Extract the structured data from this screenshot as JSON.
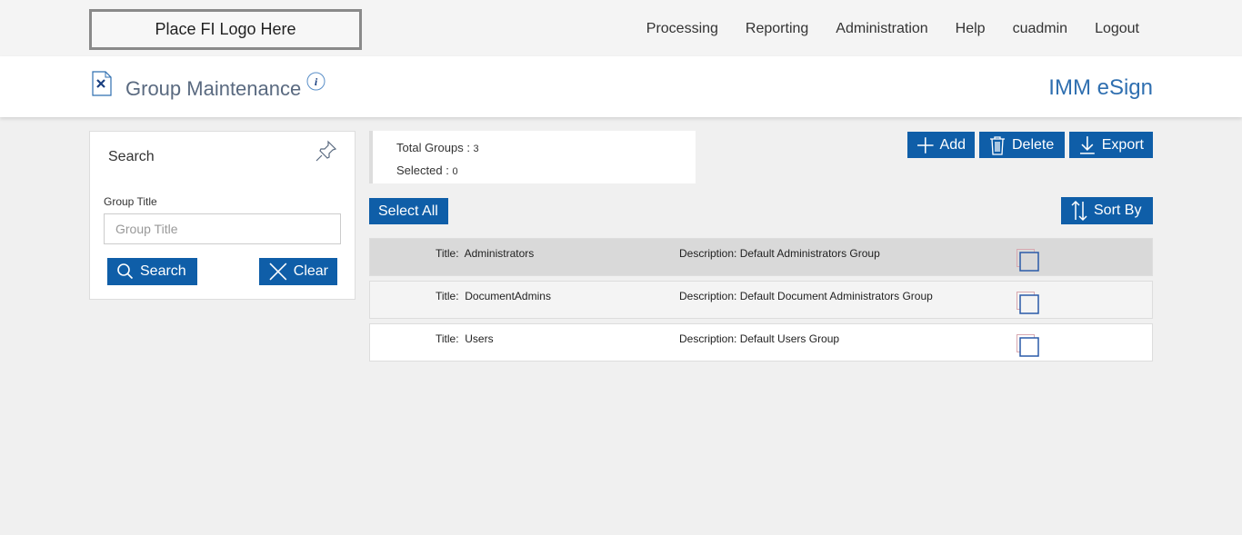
{
  "logo": "Place FI Logo Here",
  "nav": [
    "Processing",
    "Reporting",
    "Administration",
    "Help",
    "cuadmin",
    "Logout"
  ],
  "header": {
    "title": "Group Maintenance",
    "brand": "IMM eSign"
  },
  "search": {
    "title": "Search",
    "field_label": "Group Title",
    "placeholder": "Group Title",
    "value": "",
    "search_label": "Search",
    "clear_label": "Clear"
  },
  "stats": {
    "total_label": "Total Groups : ",
    "total": "3",
    "selected_label": "Selected : ",
    "selected": "0"
  },
  "toolbar": {
    "add": "Add",
    "delete": "Delete",
    "export": "Export",
    "select_all": "Select All",
    "sort_by": "Sort By"
  },
  "colors": {
    "accent": "#0f5ea8",
    "brand": "#2f6fb0"
  },
  "groups": [
    {
      "title_label": "Title:",
      "title": "Administrators",
      "desc_label": "Description:",
      "desc": "Default Administrators Group",
      "checked": false
    },
    {
      "title_label": "Title:",
      "title": "DocumentAdmins",
      "desc_label": "Description:",
      "desc": "Default Document Administrators Group",
      "checked": false
    },
    {
      "title_label": "Title:",
      "title": "Users",
      "desc_label": "Description:",
      "desc": "Default Users Group",
      "checked": false
    }
  ]
}
